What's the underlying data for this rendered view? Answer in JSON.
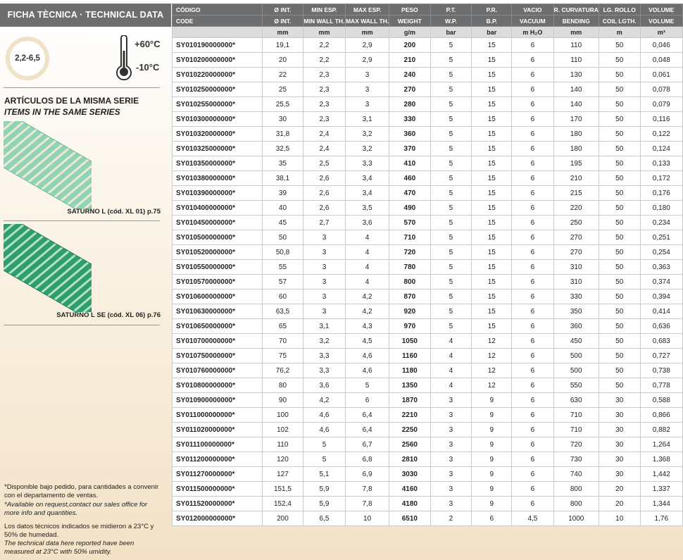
{
  "sidebar": {
    "title": "FICHA TÈCNICA · TECHNICAL DATA",
    "badge": "2,2-6,5",
    "temp_max": "+60°C",
    "temp_min": "-10°C",
    "series_title": "ARTÍCULOS DE LA MISMA SERIE",
    "series_subtitle": "ITEMS IN THE SAME SERIES",
    "related": [
      {
        "caption": "SATURNO L (cód. XL 01) p.75"
      },
      {
        "caption": "SATURNO L SE (cód. XL 06) p.76"
      }
    ],
    "notes": [
      "*Disponible bajo pedido, para cantidades a convenir con el departamento de ventas.",
      "*Available on request,contact our sales office for more info and quantities.",
      "Los datos técnicos indicados se midieron a 23°C y 50% de humedad.",
      "The technical data here reported have been measured at 23°C with 50% umidity."
    ]
  },
  "table": {
    "header_es": [
      "CÓDIGO",
      "Ø INT.",
      "MIN ESP.",
      "MAX ESP.",
      "PESO",
      "P.T.",
      "P.R.",
      "VACIO",
      "R. CURVATURA",
      "LG. ROLLO",
      "VOLUME"
    ],
    "header_en": [
      "CODE",
      "Ø INT.",
      "MIN WALL TH.",
      "MAX WALL TH.",
      "WEIGHT",
      "W.P.",
      "B.P.",
      "VACUUM",
      "BENDING",
      "COIL LGTH.",
      "VOLUME"
    ],
    "units": [
      "mm",
      "mm",
      "mm",
      "g/m",
      "bar",
      "bar",
      "m H₂O",
      "mm",
      "m",
      "m³"
    ],
    "rows": [
      [
        "SY010190000000*",
        "19,1",
        "2,2",
        "2,9",
        "200",
        "5",
        "15",
        "6",
        "110",
        "50",
        "0,046"
      ],
      [
        "SY010200000000*",
        "20",
        "2,2",
        "2,9",
        "210",
        "5",
        "15",
        "6",
        "110",
        "50",
        "0,048"
      ],
      [
        "SY010220000000*",
        "22",
        "2,3",
        "3",
        "240",
        "5",
        "15",
        "6",
        "130",
        "50",
        "0,061"
      ],
      [
        "SY010250000000*",
        "25",
        "2,3",
        "3",
        "270",
        "5",
        "15",
        "6",
        "140",
        "50",
        "0,078"
      ],
      [
        "SY010255000000*",
        "25,5",
        "2,3",
        "3",
        "280",
        "5",
        "15",
        "6",
        "140",
        "50",
        "0,079"
      ],
      [
        "SY010300000000*",
        "30",
        "2,3",
        "3,1",
        "330",
        "5",
        "15",
        "6",
        "170",
        "50",
        "0,116"
      ],
      [
        "SY010320000000*",
        "31,8",
        "2,4",
        "3,2",
        "360",
        "5",
        "15",
        "6",
        "180",
        "50",
        "0,122"
      ],
      [
        "SY010325000000*",
        "32,5",
        "2,4",
        "3,2",
        "370",
        "5",
        "15",
        "6",
        "180",
        "50",
        "0,124"
      ],
      [
        "SY010350000000*",
        "35",
        "2,5",
        "3,3",
        "410",
        "5",
        "15",
        "6",
        "195",
        "50",
        "0,133"
      ],
      [
        "SY010380000000*",
        "38,1",
        "2,6",
        "3,4",
        "460",
        "5",
        "15",
        "6",
        "210",
        "50",
        "0,172"
      ],
      [
        "SY010390000000*",
        "39",
        "2,6",
        "3,4",
        "470",
        "5",
        "15",
        "6",
        "215",
        "50",
        "0,176"
      ],
      [
        "SY010400000000*",
        "40",
        "2,6",
        "3,5",
        "490",
        "5",
        "15",
        "6",
        "220",
        "50",
        "0,180"
      ],
      [
        "SY010450000000*",
        "45",
        "2,7",
        "3,6",
        "570",
        "5",
        "15",
        "6",
        "250",
        "50",
        "0,234"
      ],
      [
        "SY010500000000*",
        "50",
        "3",
        "4",
        "710",
        "5",
        "15",
        "6",
        "270",
        "50",
        "0,251"
      ],
      [
        "SY010520000000*",
        "50,8",
        "3",
        "4",
        "720",
        "5",
        "15",
        "6",
        "270",
        "50",
        "0,254"
      ],
      [
        "SY010550000000*",
        "55",
        "3",
        "4",
        "780",
        "5",
        "15",
        "6",
        "310",
        "50",
        "0,363"
      ],
      [
        "SY010570000000*",
        "57",
        "3",
        "4",
        "800",
        "5",
        "15",
        "6",
        "310",
        "50",
        "0,374"
      ],
      [
        "SY010600000000*",
        "60",
        "3",
        "4,2",
        "870",
        "5",
        "15",
        "6",
        "330",
        "50",
        "0,394"
      ],
      [
        "SY010630000000*",
        "63,5",
        "3",
        "4,2",
        "920",
        "5",
        "15",
        "6",
        "350",
        "50",
        "0,414"
      ],
      [
        "SY010650000000*",
        "65",
        "3,1",
        "4,3",
        "970",
        "5",
        "15",
        "6",
        "360",
        "50",
        "0,636"
      ],
      [
        "SY010700000000*",
        "70",
        "3,2",
        "4,5",
        "1050",
        "4",
        "12",
        "6",
        "450",
        "50",
        "0,683"
      ],
      [
        "SY010750000000*",
        "75",
        "3,3",
        "4,6",
        "1160",
        "4",
        "12",
        "6",
        "500",
        "50",
        "0,727"
      ],
      [
        "SY010760000000*",
        "76,2",
        "3,3",
        "4,6",
        "1180",
        "4",
        "12",
        "6",
        "500",
        "50",
        "0,738"
      ],
      [
        "SY010800000000*",
        "80",
        "3,6",
        "5",
        "1350",
        "4",
        "12",
        "6",
        "550",
        "50",
        "0,778"
      ],
      [
        "SY010900000000*",
        "90",
        "4,2",
        "6",
        "1870",
        "3",
        "9",
        "6",
        "630",
        "30",
        "0,588"
      ],
      [
        "SY011000000000*",
        "100",
        "4,6",
        "6,4",
        "2210",
        "3",
        "9",
        "6",
        "710",
        "30",
        "0,866"
      ],
      [
        "SY011020000000*",
        "102",
        "4,6",
        "6,4",
        "2250",
        "3",
        "9",
        "6",
        "710",
        "30",
        "0,882"
      ],
      [
        "SY011100000000*",
        "110",
        "5",
        "6,7",
        "2560",
        "3",
        "9",
        "6",
        "720",
        "30",
        "1,264"
      ],
      [
        "SY011200000000*",
        "120",
        "5",
        "6,8",
        "2810",
        "3",
        "9",
        "6",
        "730",
        "30",
        "1,368"
      ],
      [
        "SY011270000000*",
        "127",
        "5,1",
        "6,9",
        "3030",
        "3",
        "9",
        "6",
        "740",
        "30",
        "1,442"
      ],
      [
        "SY011500000000*",
        "151,5",
        "5,9",
        "7,8",
        "4160",
        "3",
        "9",
        "6",
        "800",
        "20",
        "1,337"
      ],
      [
        "SY011520000000*",
        "152,4",
        "5,9",
        "7,8",
        "4180",
        "3",
        "9",
        "6",
        "800",
        "20",
        "1,344"
      ],
      [
        "SY012000000000*",
        "200",
        "6,5",
        "10",
        "6510",
        "2",
        "6",
        "4,5",
        "1000",
        "10",
        "1,76"
      ]
    ]
  }
}
